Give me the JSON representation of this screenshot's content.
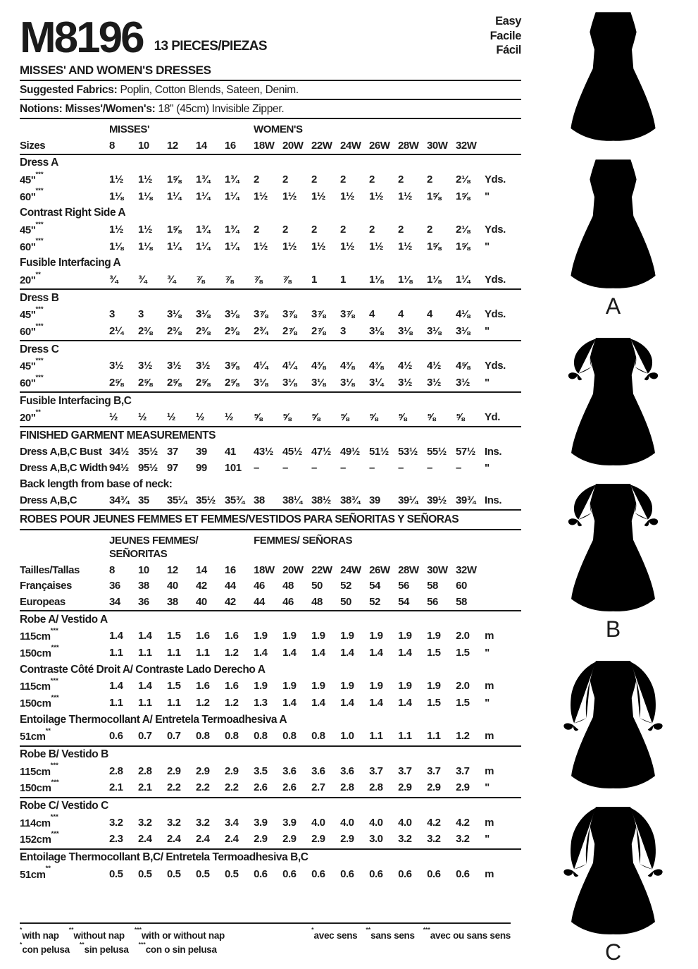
{
  "header": {
    "pattern_number": "M8196",
    "pieces": "13 PIECES/PIEZAS",
    "difficulty": [
      "Easy",
      "Facile",
      "Fácil"
    ],
    "title": "MISSES' AND WOMEN'S DRESSES",
    "fabrics_label": "Suggested Fabrics:",
    "fabrics_value": " Poplin, Cotton Blends, Sateen, Denim.",
    "notions_label": "Notions: Misses'/Women's:",
    "notions_value": " 18\" (45cm) Invisible Zipper."
  },
  "colors": {
    "ink": "#1b1b1b",
    "contrast_shade": "#cdd0d2",
    "paper": "#ffffff"
  },
  "tables": {
    "en": {
      "rows": [
        {
          "type": "groups",
          "left_lines": [
            "MISSES'"
          ],
          "right": "WOMEN'S"
        },
        {
          "type": "sizes",
          "label": "Sizes",
          "values": [
            "8",
            "10",
            "12",
            "14",
            "16",
            "18W",
            "20W",
            "22W",
            "24W",
            "26W",
            "28W",
            "30W",
            "32W"
          ],
          "unit": ""
        },
        {
          "type": "section",
          "label": "Dress A",
          "rule": true
        },
        {
          "type": "data",
          "label": "45\"***",
          "values": [
            "1½",
            "1½",
            "1⅝",
            "1¾",
            "1¾",
            "2",
            "2",
            "2",
            "2",
            "2",
            "2",
            "2",
            "2⅛"
          ],
          "unit": "Yds."
        },
        {
          "type": "data",
          "label": "60\"***",
          "values": [
            "1⅛",
            "1⅛",
            "1¼",
            "1¼",
            "1¼",
            "1½",
            "1½",
            "1½",
            "1½",
            "1½",
            "1½",
            "1⅝",
            "1⅝"
          ],
          "unit": "\""
        },
        {
          "type": "section",
          "label": "Contrast Right Side A"
        },
        {
          "type": "data",
          "label": "45\"***",
          "values": [
            "1½",
            "1½",
            "1⅝",
            "1¾",
            "1¾",
            "2",
            "2",
            "2",
            "2",
            "2",
            "2",
            "2",
            "2⅛"
          ],
          "unit": "Yds."
        },
        {
          "type": "data",
          "label": "60\"***",
          "values": [
            "1⅛",
            "1⅛",
            "1¼",
            "1¼",
            "1¼",
            "1½",
            "1½",
            "1½",
            "1½",
            "1½",
            "1½",
            "1⅝",
            "1⅝"
          ],
          "unit": "\""
        },
        {
          "type": "section",
          "label": "Fusible Interfacing A"
        },
        {
          "type": "data",
          "label": "20\"**",
          "values": [
            "¾",
            "¾",
            "¾",
            "⅞",
            "⅞",
            "⅞",
            "⅞",
            "1",
            "1",
            "1⅛",
            "1⅛",
            "1⅛",
            "1¼"
          ],
          "unit": "Yds."
        },
        {
          "type": "section",
          "label": "Dress B",
          "rule": true
        },
        {
          "type": "data",
          "label": "45\"***",
          "values": [
            "3",
            "3",
            "3⅛",
            "3⅛",
            "3⅛",
            "3⅞",
            "3⅞",
            "3⅞",
            "3⅞",
            "4",
            "4",
            "4",
            "4⅛"
          ],
          "unit": "Yds."
        },
        {
          "type": "data",
          "label": "60\"***",
          "values": [
            "2¼",
            "2⅜",
            "2⅜",
            "2⅜",
            "2⅜",
            "2¾",
            "2⅞",
            "2⅞",
            "3",
            "3⅛",
            "3⅛",
            "3⅛",
            "3⅛"
          ],
          "unit": "\""
        },
        {
          "type": "section",
          "label": "Dress C",
          "rule": true
        },
        {
          "type": "data",
          "label": "45\"***",
          "values": [
            "3½",
            "3½",
            "3½",
            "3½",
            "3⅝",
            "4¼",
            "4¼",
            "4⅜",
            "4⅜",
            "4⅜",
            "4½",
            "4½",
            "4⅝"
          ],
          "unit": "Yds."
        },
        {
          "type": "data",
          "label": "60\"***",
          "values": [
            "2⅝",
            "2⅝",
            "2⅝",
            "2⅝",
            "2⅝",
            "3⅛",
            "3⅛",
            "3⅛",
            "3⅛",
            "3¼",
            "3½",
            "3½",
            "3½"
          ],
          "unit": "\""
        },
        {
          "type": "section",
          "label": "Fusible Interfacing B,C",
          "rule": true
        },
        {
          "type": "data",
          "label": "20\"**",
          "values": [
            "½",
            "½",
            "½",
            "½",
            "½",
            "⅝",
            "⅝",
            "⅝",
            "⅝",
            "⅝",
            "⅝",
            "⅝",
            "⅝"
          ],
          "unit": "Yd."
        },
        {
          "type": "section",
          "label": "FINISHED GARMENT MEASUREMENTS",
          "rule": true
        },
        {
          "type": "data",
          "label": "Dress A,B,C Bust",
          "values": [
            "34½",
            "35½",
            "37",
            "39",
            "41",
            "43½",
            "45½",
            "47½",
            "49½",
            "51½",
            "53½",
            "55½",
            "57½"
          ],
          "unit": "Ins."
        },
        {
          "type": "data",
          "label": "Dress A,B,C Width",
          "values": [
            "94½",
            "95½",
            "97",
            "99",
            "101",
            "–",
            "–",
            "–",
            "–",
            "–",
            "–",
            "–",
            "–"
          ],
          "unit": "\""
        },
        {
          "type": "section",
          "label": "Back length from base of neck:"
        },
        {
          "type": "data",
          "label": "Dress A,B,C",
          "values": [
            "34¾",
            "35",
            "35¼",
            "35½",
            "35¾",
            "38",
            "38¼",
            "38½",
            "38¾",
            "39",
            "39¼",
            "39½",
            "39¾"
          ],
          "unit": "Ins."
        },
        {
          "type": "band",
          "label": "ROBES POUR JEUNES FEMMES ET FEMMES/VESTIDOS PARA SEÑORITAS Y SEÑORAS",
          "rule": true
        }
      ]
    },
    "fr": {
      "rows": [
        {
          "type": "groups",
          "left_lines": [
            "JEUNES FEMMES/",
            "SEÑORITAS"
          ],
          "right": "FEMMES/ SEÑORAS"
        },
        {
          "type": "sizes",
          "label": "Tailles/Tallas",
          "values": [
            "8",
            "10",
            "12",
            "14",
            "16",
            "18W",
            "20W",
            "22W",
            "24W",
            "26W",
            "28W",
            "30W",
            "32W"
          ],
          "unit": ""
        },
        {
          "type": "data",
          "label": "Françaises",
          "values": [
            "36",
            "38",
            "40",
            "42",
            "44",
            "46",
            "48",
            "50",
            "52",
            "54",
            "56",
            "58",
            "60"
          ],
          "unit": ""
        },
        {
          "type": "data",
          "label": "Europeas",
          "values": [
            "34",
            "36",
            "38",
            "40",
            "42",
            "44",
            "46",
            "48",
            "50",
            "52",
            "54",
            "56",
            "58"
          ],
          "unit": ""
        },
        {
          "type": "section",
          "label": "Robe A/ Vestido A",
          "rule": true
        },
        {
          "type": "data",
          "label": "115cm***",
          "values": [
            "1.4",
            "1.4",
            "1.5",
            "1.6",
            "1.6",
            "1.9",
            "1.9",
            "1.9",
            "1.9",
            "1.9",
            "1.9",
            "1.9",
            "2.0"
          ],
          "unit": "m"
        },
        {
          "type": "data",
          "label": "150cm***",
          "values": [
            "1.1",
            "1.1",
            "1.1",
            "1.1",
            "1.2",
            "1.4",
            "1.4",
            "1.4",
            "1.4",
            "1.4",
            "1.4",
            "1.5",
            "1.5"
          ],
          "unit": "\""
        },
        {
          "type": "section",
          "label": "Contraste Côté Droit A/ Contraste Lado Derecho A"
        },
        {
          "type": "data",
          "label": "115cm***",
          "values": [
            "1.4",
            "1.4",
            "1.5",
            "1.6",
            "1.6",
            "1.9",
            "1.9",
            "1.9",
            "1.9",
            "1.9",
            "1.9",
            "1.9",
            "2.0"
          ],
          "unit": "m"
        },
        {
          "type": "data",
          "label": "150cm***",
          "values": [
            "1.1",
            "1.1",
            "1.1",
            "1.2",
            "1.2",
            "1.3",
            "1.4",
            "1.4",
            "1.4",
            "1.4",
            "1.4",
            "1.5",
            "1.5"
          ],
          "unit": "\""
        },
        {
          "type": "section",
          "label": "Entoilage Thermocollant A/ Entretela Termoadhesiva A"
        },
        {
          "type": "data",
          "label": "51cm**",
          "values": [
            "0.6",
            "0.7",
            "0.7",
            "0.8",
            "0.8",
            "0.8",
            "0.8",
            "0.8",
            "1.0",
            "1.1",
            "1.1",
            "1.1",
            "1.2"
          ],
          "unit": "m"
        },
        {
          "type": "section",
          "label": "Robe B/ Vestido B",
          "rule": true
        },
        {
          "type": "data",
          "label": "115cm***",
          "values": [
            "2.8",
            "2.8",
            "2.9",
            "2.9",
            "2.9",
            "3.5",
            "3.6",
            "3.6",
            "3.6",
            "3.7",
            "3.7",
            "3.7",
            "3.7"
          ],
          "unit": "m"
        },
        {
          "type": "data",
          "label": "150cm***",
          "values": [
            "2.1",
            "2.1",
            "2.2",
            "2.2",
            "2.2",
            "2.6",
            "2.6",
            "2.7",
            "2.8",
            "2.8",
            "2.9",
            "2.9",
            "2.9"
          ],
          "unit": "\""
        },
        {
          "type": "section",
          "label": "Robe C/ Vestido C",
          "rule": true
        },
        {
          "type": "data",
          "label": "114cm***",
          "values": [
            "3.2",
            "3.2",
            "3.2",
            "3.2",
            "3.4",
            "3.9",
            "3.9",
            "4.0",
            "4.0",
            "4.0",
            "4.0",
            "4.2",
            "4.2"
          ],
          "unit": "m"
        },
        {
          "type": "data",
          "label": "152cm***",
          "values": [
            "2.3",
            "2.4",
            "2.4",
            "2.4",
            "2.4",
            "2.9",
            "2.9",
            "2.9",
            "2.9",
            "3.0",
            "3.2",
            "3.2",
            "3.2"
          ],
          "unit": "\""
        },
        {
          "type": "section",
          "label": "Entoilage Thermocollant B,C/ Entretela Termoadhesiva B,C",
          "rule": true
        },
        {
          "type": "data",
          "label": "51cm**",
          "values": [
            "0.5",
            "0.5",
            "0.5",
            "0.5",
            "0.5",
            "0.6",
            "0.6",
            "0.6",
            "0.6",
            "0.6",
            "0.6",
            "0.6",
            "0.6"
          ],
          "unit": "m"
        }
      ]
    }
  },
  "footnotes": {
    "en": [
      "*with nap",
      "**without nap",
      "***with or without nap"
    ],
    "es": [
      "*con pelusa",
      "**sin pelusa",
      "***con o sin pelusa"
    ],
    "fr": [
      "*avec sens",
      "**sans sens",
      "***avec ou sans sens"
    ]
  },
  "figures": {
    "labels": [
      "A",
      "B",
      "C"
    ]
  }
}
